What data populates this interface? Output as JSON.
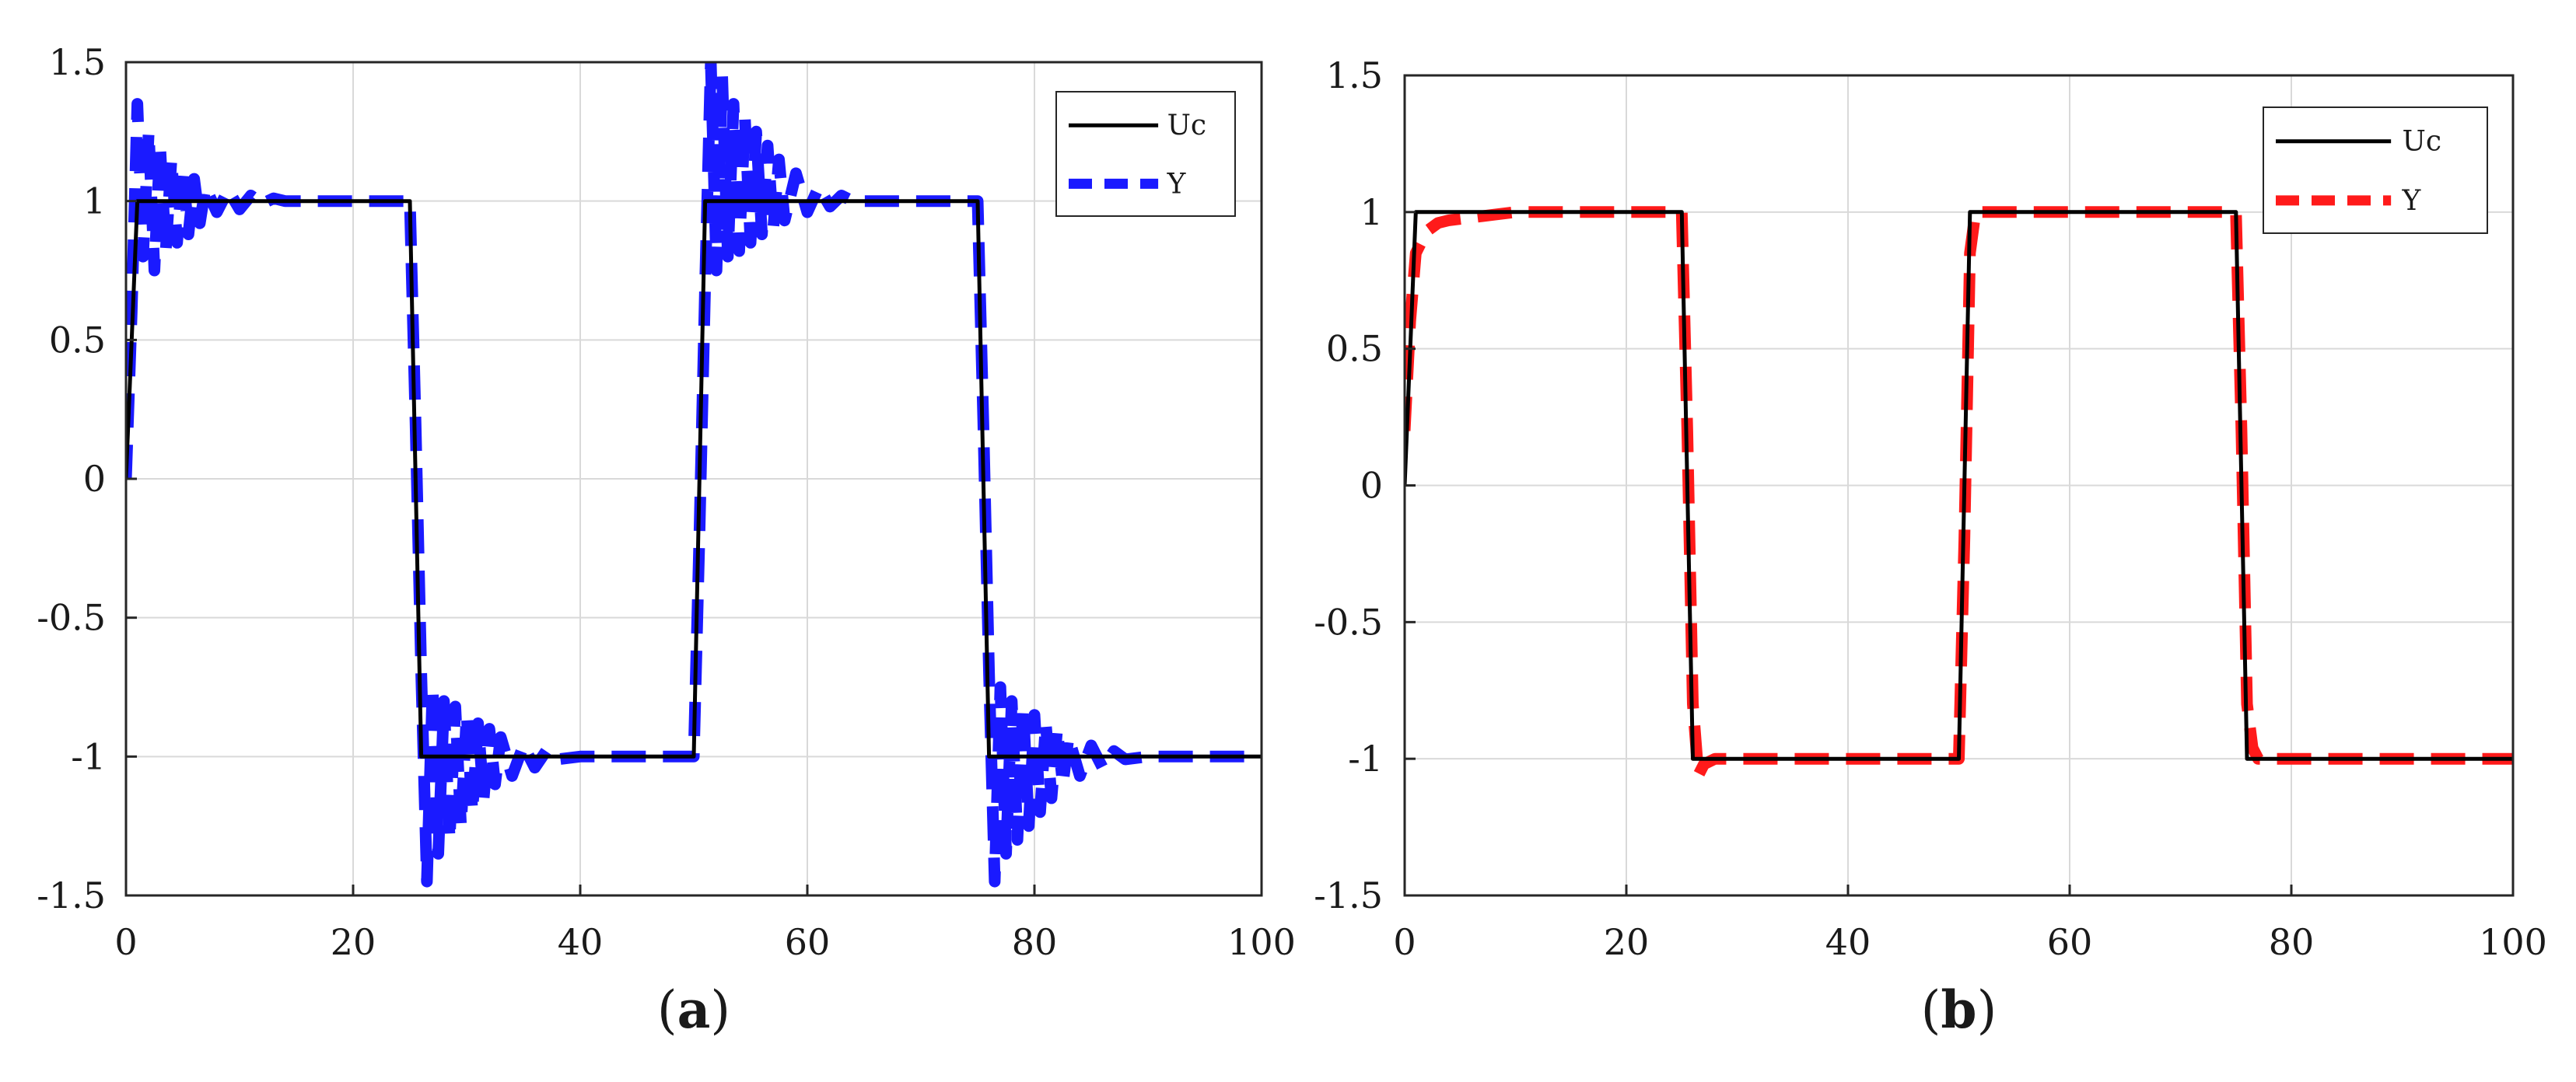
{
  "chart_data": [
    {
      "type": "line",
      "panel_label": "(a)",
      "panel_letter": "a",
      "xlim": [
        0,
        100
      ],
      "ylim": [
        -1.5,
        1.5
      ],
      "xticks": [
        0,
        20,
        40,
        60,
        80,
        100
      ],
      "xtick_labels": [
        "0",
        "20",
        "40",
        "60",
        "80",
        "100"
      ],
      "yticks": [
        1.5,
        1,
        0.5,
        0,
        -0.5,
        -1,
        -1.5
      ],
      "ytick_labels": [
        "1.5",
        "1",
        "0.5",
        "0",
        "-0.5",
        "-1",
        "-1.5"
      ],
      "grid": true,
      "legend_position": "top-right",
      "series": [
        {
          "name": "Uc",
          "color": "#000000",
          "style": "solid",
          "x": [
            0,
            1,
            25,
            26,
            50,
            51,
            75,
            76,
            100
          ],
          "y": [
            0,
            1,
            1,
            -1,
            -1,
            1,
            1,
            -1,
            -1
          ]
        },
        {
          "name": "Y",
          "color": "#1a1aff",
          "style": "dashed",
          "x": [
            0,
            0.5,
            1,
            1.5,
            2,
            2.5,
            3,
            3.5,
            4,
            4.5,
            5,
            5.5,
            6,
            6.5,
            7,
            8,
            9,
            10,
            11,
            12,
            13,
            14,
            15,
            17,
            19,
            21,
            23,
            25,
            25.5,
            26,
            26.5,
            27,
            27.5,
            28,
            28.5,
            29,
            29.5,
            30,
            30.5,
            31,
            31.5,
            32,
            32.5,
            33,
            34,
            35,
            36,
            37,
            38,
            40,
            42,
            44,
            46,
            48,
            50,
            50.5,
            51,
            51.5,
            52,
            52.5,
            53,
            53.5,
            54,
            54.5,
            55,
            55.5,
            56,
            56.5,
            57,
            57.5,
            58,
            59,
            60,
            61,
            62,
            63,
            64,
            66,
            68,
            70,
            72,
            74,
            75,
            75.5,
            76,
            76.5,
            77,
            77.5,
            78,
            78.5,
            79,
            79.5,
            80,
            80.5,
            81,
            81.5,
            82,
            82.5,
            83,
            84,
            85,
            86,
            87,
            88,
            90,
            92,
            94,
            96,
            98,
            100
          ],
          "y": [
            0,
            0.6,
            1.35,
            0.8,
            1.25,
            0.75,
            1.2,
            0.82,
            1.15,
            0.85,
            1.12,
            0.88,
            1.08,
            0.92,
            1.05,
            0.96,
            1.04,
            0.97,
            1.02,
            0.99,
            1.01,
            1.0,
            1.0,
            1.0,
            1.0,
            1.0,
            1.0,
            1.0,
            0.2,
            -0.7,
            -1.45,
            -0.75,
            -1.35,
            -0.8,
            -1.3,
            -0.82,
            -1.25,
            -0.85,
            -1.2,
            -0.88,
            -1.15,
            -0.9,
            -1.1,
            -0.93,
            -1.07,
            -0.96,
            -1.04,
            -0.98,
            -1.01,
            -1.0,
            -1.0,
            -1.0,
            -1.0,
            -1.0,
            -1.0,
            -0.2,
            0.7,
            1.5,
            0.75,
            1.45,
            0.8,
            1.35,
            0.82,
            1.3,
            0.85,
            1.25,
            0.88,
            1.2,
            0.9,
            1.15,
            0.93,
            1.1,
            0.96,
            1.05,
            0.98,
            1.02,
            1.0,
            1.0,
            1.0,
            1.0,
            1.0,
            1.0,
            1.0,
            0.2,
            -0.7,
            -1.45,
            -0.75,
            -1.35,
            -0.8,
            -1.3,
            -0.82,
            -1.25,
            -0.85,
            -1.2,
            -0.88,
            -1.15,
            -0.9,
            -1.1,
            -0.93,
            -1.07,
            -0.96,
            -1.04,
            -0.98,
            -1.01,
            -1.0,
            -1.0,
            -1.0,
            -1.0,
            -1.0,
            -1.0
          ]
        }
      ]
    },
    {
      "type": "line",
      "panel_label": "(b)",
      "panel_letter": "b",
      "xlim": [
        0,
        100
      ],
      "ylim": [
        -1.5,
        1.5
      ],
      "xticks": [
        0,
        20,
        40,
        60,
        80,
        100
      ],
      "xtick_labels": [
        "0",
        "20",
        "40",
        "60",
        "80",
        "100"
      ],
      "yticks": [
        1.5,
        1,
        0.5,
        0,
        -0.5,
        -1,
        -1.5
      ],
      "ytick_labels": [
        "1.5",
        "1",
        "0.5",
        "0",
        "-0.5",
        "-1",
        "-1.5"
      ],
      "grid": true,
      "legend_position": "top-right",
      "series": [
        {
          "name": "Uc",
          "color": "#000000",
          "style": "solid",
          "x": [
            0,
            1,
            25,
            26,
            50,
            51,
            75,
            76,
            100
          ],
          "y": [
            0,
            1,
            1,
            -1,
            -1,
            1,
            1,
            -1,
            -1
          ]
        },
        {
          "name": "Y",
          "color": "#ff1a1a",
          "style": "dashed",
          "x": [
            0,
            0.5,
            1,
            2,
            3,
            4,
            6,
            8,
            10,
            15,
            20,
            25,
            25.5,
            26,
            26.5,
            27,
            28,
            30,
            35,
            40,
            45,
            50,
            50.5,
            51,
            51.5,
            52,
            53,
            55,
            60,
            65,
            70,
            75,
            75.5,
            76,
            76.5,
            77,
            78,
            80,
            85,
            90,
            95,
            100
          ],
          "y": [
            0.2,
            0.6,
            0.85,
            0.93,
            0.96,
            0.97,
            0.98,
            0.99,
            1.0,
            1.0,
            1.0,
            1.0,
            0.2,
            -0.8,
            -1.06,
            -1.02,
            -1.0,
            -1.0,
            -1.0,
            -1.0,
            -1.0,
            -1.0,
            -0.2,
            0.85,
            1.0,
            1.0,
            1.0,
            1.0,
            1.0,
            1.0,
            1.0,
            1.0,
            0.2,
            -0.8,
            -0.96,
            -1.0,
            -1.0,
            -1.0,
            -1.0,
            -1.0,
            -1.0,
            -1.0
          ]
        }
      ]
    }
  ]
}
